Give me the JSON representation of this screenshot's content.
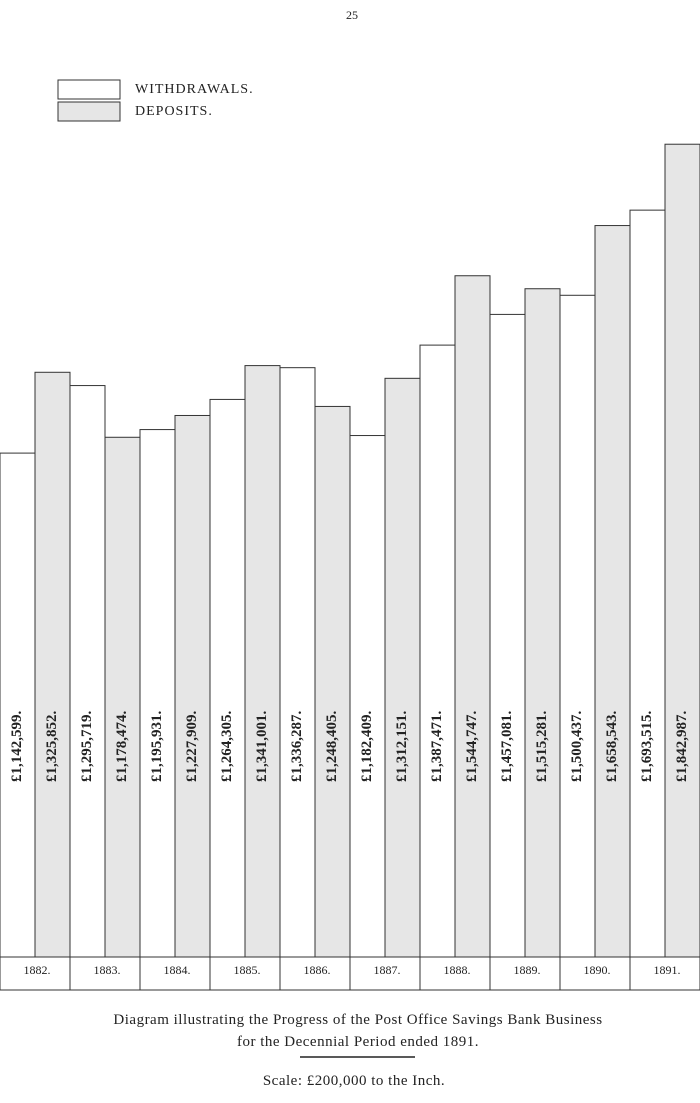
{
  "page_number": "25",
  "chart_data": {
    "type": "bar",
    "categories": [
      "1882.",
      "1883.",
      "1884.",
      "1885.",
      "1886.",
      "1887.",
      "1888.",
      "1889.",
      "1890.",
      "1891."
    ],
    "series": [
      {
        "name": "WITHDRAWALS.",
        "color": "#ffffff",
        "values": [
          1142599,
          1295719,
          1195931,
          1264305,
          1336287,
          1182409,
          1387471,
          1457081,
          1500437,
          1693515
        ],
        "value_labels": [
          "£1,142,599.",
          "£1,295,719.",
          "£1,195,931.",
          "£1,264,305.",
          "£1,336,287.",
          "£1,182,409.",
          "£1,387,471.",
          "£1,457,081.",
          "£1,500,437.",
          "£1,693,515."
        ]
      },
      {
        "name": "DEPOSITS.",
        "color": "#e6e6e6",
        "values": [
          1325852,
          1178474,
          1227909,
          1341001,
          1248405,
          1312151,
          1544747,
          1515281,
          1658543,
          1842987
        ],
        "value_labels": [
          "£1,325,852.",
          "£1,178,474.",
          "£1,227,909.",
          "£1,341,001.",
          "£1,248,405.",
          "£1,312,151.",
          "£1,544,747.",
          "£1,515,281.",
          "£1,658,543.",
          "£1,842,987."
        ]
      }
    ],
    "ylim": [
      0,
      2170000
    ],
    "caption": [
      "Diagram illustrating the Progress of the Post Office Savings Bank Business",
      "for the Decennial Period ended 1891."
    ],
    "scale_note": "Scale: £200,000 to the Inch."
  }
}
